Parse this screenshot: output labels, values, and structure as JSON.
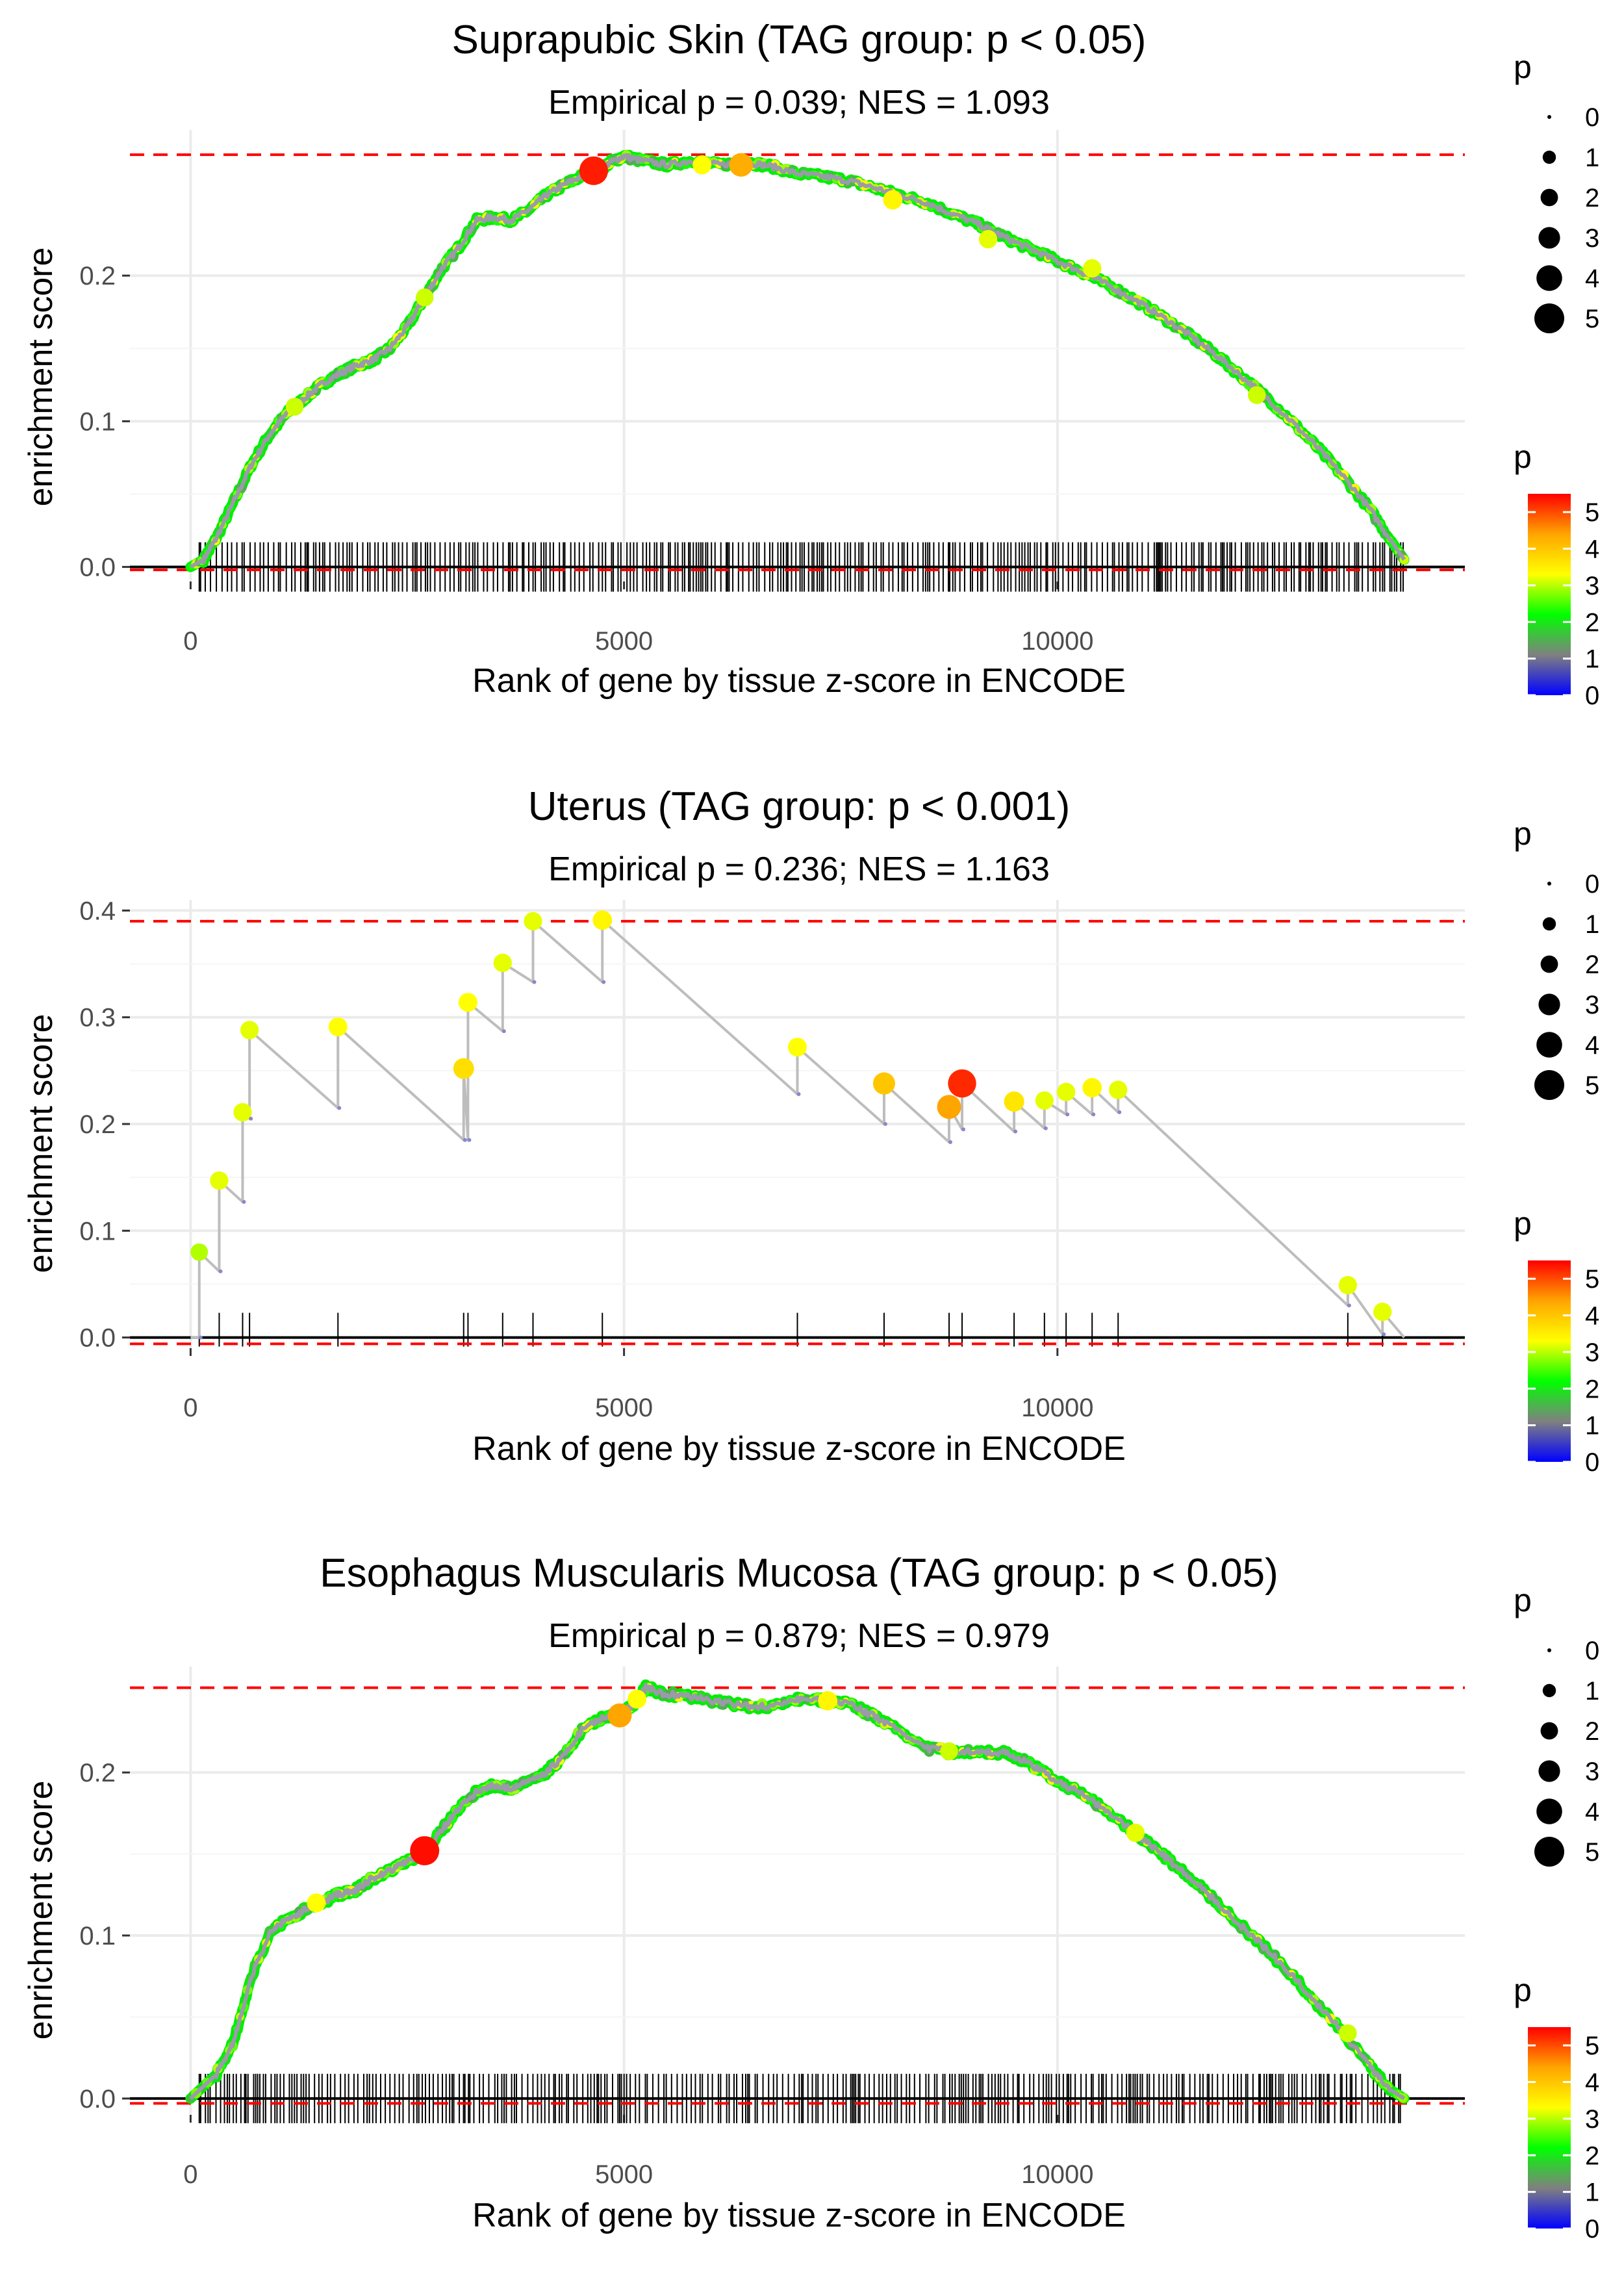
{
  "figure_title": "GSEA enrichment plots",
  "chart_data": [
    {
      "type": "line",
      "title": "Suprapubic Skin (TAG group: p < 0.05)",
      "subtitle": "Empirical p = 0.039; NES = 1.093",
      "xlabel": "Rank of gene by tissue z-score in ENCODE",
      "ylabel": "enrichment score",
      "xlim": [
        -700,
        14700
      ],
      "ylim": [
        -0.01,
        0.3
      ],
      "xticks": [
        0,
        5000,
        10000
      ],
      "xtick_labels": [
        "0",
        "5000",
        "10000"
      ],
      "yticks": [
        0.0,
        0.1,
        0.2
      ],
      "ytick_labels": [
        "0.0",
        "0.1",
        "0.2"
      ],
      "max_es": 0.283,
      "min_es": -0.002,
      "mode": "dense",
      "curve": [
        [
          0,
          0
        ],
        [
          150,
          0.005
        ],
        [
          300,
          0.02
        ],
        [
          500,
          0.045
        ],
        [
          700,
          0.07
        ],
        [
          900,
          0.09
        ],
        [
          1100,
          0.105
        ],
        [
          1300,
          0.115
        ],
        [
          1500,
          0.125
        ],
        [
          1700,
          0.132
        ],
        [
          1900,
          0.138
        ],
        [
          2100,
          0.142
        ],
        [
          2300,
          0.15
        ],
        [
          2500,
          0.165
        ],
        [
          2700,
          0.185
        ],
        [
          2900,
          0.205
        ],
        [
          3100,
          0.22
        ],
        [
          3300,
          0.238
        ],
        [
          3500,
          0.24
        ],
        [
          3700,
          0.238
        ],
        [
          3900,
          0.245
        ],
        [
          4100,
          0.255
        ],
        [
          4300,
          0.262
        ],
        [
          4500,
          0.268
        ],
        [
          4700,
          0.272
        ],
        [
          4850,
          0.278
        ],
        [
          5000,
          0.282
        ],
        [
          5200,
          0.279
        ],
        [
          5500,
          0.276
        ],
        [
          5800,
          0.279
        ],
        [
          6100,
          0.276
        ],
        [
          6400,
          0.278
        ],
        [
          6700,
          0.275
        ],
        [
          7000,
          0.27
        ],
        [
          7300,
          0.268
        ],
        [
          7600,
          0.265
        ],
        [
          7900,
          0.26
        ],
        [
          8200,
          0.255
        ],
        [
          8500,
          0.25
        ],
        [
          8800,
          0.242
        ],
        [
          9100,
          0.235
        ],
        [
          9400,
          0.226
        ],
        [
          9700,
          0.218
        ],
        [
          10000,
          0.21
        ],
        [
          10300,
          0.202
        ],
        [
          10600,
          0.193
        ],
        [
          10900,
          0.183
        ],
        [
          11200,
          0.172
        ],
        [
          11500,
          0.16
        ],
        [
          11800,
          0.147
        ],
        [
          12100,
          0.132
        ],
        [
          12400,
          0.117
        ],
        [
          12700,
          0.1
        ],
        [
          13000,
          0.082
        ],
        [
          13300,
          0.062
        ],
        [
          13600,
          0.04
        ],
        [
          13850,
          0.018
        ],
        [
          14000,
          0.005
        ]
      ],
      "highlights": [
        [
          4650,
          0.272,
          5.3
        ],
        [
          6350,
          0.276,
          4.2
        ],
        [
          5900,
          0.276,
          3.2
        ],
        [
          8100,
          0.252,
          3.3
        ],
        [
          12300,
          0.118,
          3.0
        ],
        [
          1200,
          0.11,
          3.0
        ],
        [
          9200,
          0.225,
          3.1
        ],
        [
          2700,
          0.185,
          3.0
        ],
        [
          10400,
          0.205,
          3.1
        ]
      ],
      "rug_range": [
        100,
        14000
      ],
      "legend_size_title": "p",
      "legend_size_labels": [
        "0",
        "1",
        "2",
        "3",
        "4",
        "5"
      ],
      "legend_color_title": "p",
      "legend_color_labels": [
        "5",
        "4",
        "3",
        "2",
        "1",
        "0"
      ]
    },
    {
      "type": "line",
      "title": "Uterus (TAG group: p < 0.001)",
      "subtitle": "Empirical p = 0.236; NES = 1.163",
      "xlabel": "Rank of gene by tissue z-score in ENCODE",
      "ylabel": "enrichment score",
      "xlim": [
        -700,
        14700
      ],
      "ylim": [
        -0.01,
        0.41
      ],
      "xticks": [
        0,
        5000,
        10000
      ],
      "xtick_labels": [
        "0",
        "5000",
        "10000"
      ],
      "yticks": [
        0.0,
        0.1,
        0.2,
        0.3,
        0.4
      ],
      "ytick_labels": [
        "0.0",
        "0.1",
        "0.2",
        "0.3",
        "0.4"
      ],
      "max_es": 0.39,
      "min_es": -0.006,
      "mode": "sparse",
      "hits": [
        [
          100,
          0.08,
          2.9,
          0.0,
          0.062
        ],
        [
          330,
          0.147,
          3.1,
          0.062,
          0.127
        ],
        [
          600,
          0.211,
          3.1,
          0.127,
          0.205
        ],
        [
          680,
          0.288,
          3.1,
          0.205,
          0.215
        ],
        [
          1700,
          0.291,
          3.2,
          0.215,
          0.185
        ],
        [
          3150,
          0.252,
          3.6,
          0.185,
          0.185
        ],
        [
          3200,
          0.314,
          3.2,
          0.185,
          0.287
        ],
        [
          3600,
          0.351,
          3.1,
          0.287,
          0.333
        ],
        [
          3950,
          0.39,
          3.1,
          0.333,
          0.333
        ],
        [
          4750,
          0.391,
          3.3,
          0.333,
          0.228
        ],
        [
          7000,
          0.272,
          3.2,
          0.228,
          0.2
        ],
        [
          8000,
          0.238,
          3.9,
          0.2,
          0.183
        ],
        [
          8750,
          0.216,
          4.3,
          0.183,
          0.195
        ],
        [
          8900,
          0.238,
          5.2,
          0.195,
          0.193
        ],
        [
          9500,
          0.221,
          3.5,
          0.193,
          0.196
        ],
        [
          9850,
          0.222,
          3.1,
          0.196,
          0.209
        ],
        [
          10100,
          0.23,
          3.1,
          0.209,
          0.209
        ],
        [
          10400,
          0.234,
          3.3,
          0.209,
          0.211
        ],
        [
          10700,
          0.232,
          3.1,
          0.211,
          0.03
        ],
        [
          13350,
          0.049,
          3.1,
          0.03,
          0.003
        ],
        [
          13750,
          0.024,
          3.1,
          0.003,
          0.0
        ]
      ],
      "curve_end": [
        14000,
        0.0
      ],
      "rug_range": [
        100,
        14000
      ],
      "legend_size_title": "p",
      "legend_size_labels": [
        "0",
        "1",
        "2",
        "3",
        "4",
        "5"
      ],
      "legend_color_title": "p",
      "legend_color_labels": [
        "5",
        "4",
        "3",
        "2",
        "1",
        "0"
      ]
    },
    {
      "type": "line",
      "title": "Esophagus Muscularis Mucosa (TAG group: p < 0.05)",
      "subtitle": "Empirical p = 0.879; NES = 0.979",
      "xlabel": "Rank of gene by tissue z-score in ENCODE",
      "ylabel": "enrichment score",
      "xlim": [
        -700,
        14700
      ],
      "ylim": [
        -0.01,
        0.265
      ],
      "xticks": [
        0,
        5000,
        10000
      ],
      "xtick_labels": [
        "0",
        "5000",
        "10000"
      ],
      "yticks": [
        0.0,
        0.1,
        0.2
      ],
      "ytick_labels": [
        "0.0",
        "0.1",
        "0.2"
      ],
      "max_es": 0.252,
      "min_es": -0.003,
      "mode": "dense",
      "curve": [
        [
          0,
          0
        ],
        [
          300,
          0.015
        ],
        [
          500,
          0.035
        ],
        [
          700,
          0.075
        ],
        [
          900,
          0.1
        ],
        [
          1100,
          0.11
        ],
        [
          1300,
          0.115
        ],
        [
          1500,
          0.12
        ],
        [
          1700,
          0.125
        ],
        [
          1900,
          0.128
        ],
        [
          2100,
          0.135
        ],
        [
          2300,
          0.14
        ],
        [
          2500,
          0.145
        ],
        [
          2700,
          0.15
        ],
        [
          2900,
          0.165
        ],
        [
          3100,
          0.178
        ],
        [
          3300,
          0.188
        ],
        [
          3500,
          0.192
        ],
        [
          3700,
          0.19
        ],
        [
          3900,
          0.195
        ],
        [
          4100,
          0.2
        ],
        [
          4300,
          0.21
        ],
        [
          4500,
          0.225
        ],
        [
          4700,
          0.232
        ],
        [
          4900,
          0.236
        ],
        [
          5100,
          0.24
        ],
        [
          5250,
          0.252
        ],
        [
          5500,
          0.248
        ],
        [
          5800,
          0.246
        ],
        [
          6100,
          0.243
        ],
        [
          6400,
          0.241
        ],
        [
          6700,
          0.24
        ],
        [
          7000,
          0.245
        ],
        [
          7300,
          0.244
        ],
        [
          7600,
          0.242
        ],
        [
          7900,
          0.234
        ],
        [
          8200,
          0.225
        ],
        [
          8500,
          0.215
        ],
        [
          8800,
          0.212
        ],
        [
          9100,
          0.213
        ],
        [
          9400,
          0.212
        ],
        [
          9700,
          0.205
        ],
        [
          10000,
          0.195
        ],
        [
          10300,
          0.186
        ],
        [
          10600,
          0.175
        ],
        [
          10900,
          0.163
        ],
        [
          11200,
          0.15
        ],
        [
          11500,
          0.137
        ],
        [
          11800,
          0.122
        ],
        [
          12100,
          0.107
        ],
        [
          12400,
          0.092
        ],
        [
          12700,
          0.076
        ],
        [
          13000,
          0.058
        ],
        [
          13300,
          0.04
        ],
        [
          13600,
          0.02
        ],
        [
          13850,
          0.005
        ],
        [
          14000,
          0
        ]
      ],
      "highlights": [
        [
          2700,
          0.152,
          5.4
        ],
        [
          4950,
          0.235,
          4.3
        ],
        [
          5150,
          0.245,
          3.2
        ],
        [
          7350,
          0.244,
          3.3
        ],
        [
          1450,
          0.12,
          3.2
        ],
        [
          8750,
          0.213,
          3.0
        ],
        [
          10900,
          0.163,
          3.1
        ],
        [
          13350,
          0.04,
          3.0
        ]
      ],
      "rug_range": [
        100,
        14000
      ],
      "legend_size_title": "p",
      "legend_size_labels": [
        "0",
        "1",
        "2",
        "3",
        "4",
        "5"
      ],
      "legend_color_title": "p",
      "legend_color_labels": [
        "5",
        "4",
        "3",
        "2",
        "1",
        "0"
      ]
    }
  ]
}
